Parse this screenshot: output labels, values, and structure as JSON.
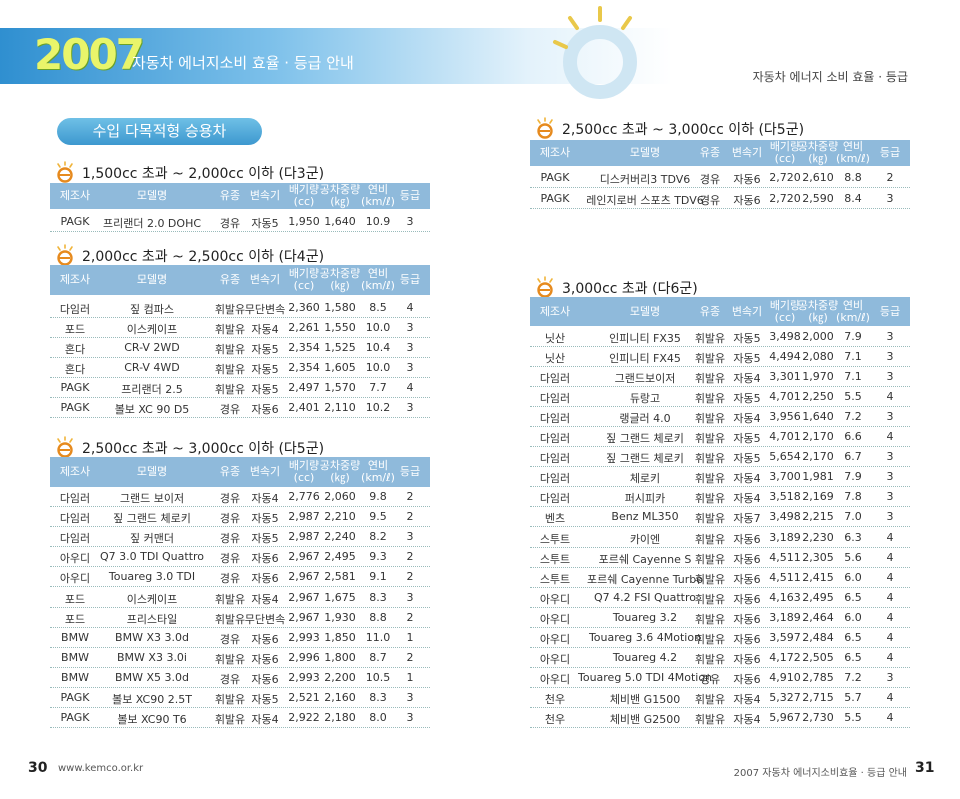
{
  "header": {
    "year": "2007",
    "title": "자동차 에너지소비 효율 · 등급 안내",
    "right": "자동차 에너지 소비 효율 · 등급"
  },
  "banner": "수입 다목적형 승용차",
  "columns": [
    "제조사",
    "모델명",
    "유종",
    "변속기",
    [
      "배기량",
      "(cc)"
    ],
    [
      "공차중량",
      "(㎏)"
    ],
    [
      "연비",
      "(km/ℓ)"
    ],
    "등급"
  ],
  "tables": [
    {
      "heading": "1,500cc 초과 ~ 2,000cc 이하 (다3군)",
      "rows": [
        [
          "PAGK",
          "프리랜더 2.0 DOHC",
          "경유",
          "자동5",
          "1,950",
          "1,640",
          "10.9",
          "3"
        ]
      ]
    },
    {
      "heading": "2,000cc 초과 ~ 2,500cc 이하 (다4군)",
      "rows": [
        [
          "다임러",
          "짚 컴파스",
          "휘발유",
          "무단변속",
          "2,360",
          "1,580",
          "8.5",
          "4"
        ],
        [
          "포드",
          "이스케이프",
          "휘발유",
          "자동4",
          "2,261",
          "1,550",
          "10.0",
          "3"
        ],
        [
          "혼다",
          "CR-V 2WD",
          "휘발유",
          "자동5",
          "2,354",
          "1,525",
          "10.4",
          "3"
        ],
        [
          "혼다",
          "CR-V 4WD",
          "휘발유",
          "자동5",
          "2,354",
          "1,605",
          "10.0",
          "3"
        ],
        [
          "PAGK",
          "프리랜더 2.5",
          "휘발유",
          "자동5",
          "2,497",
          "1,570",
          "7.7",
          "4"
        ],
        [
          "PAGK",
          "볼보 XC 90 D5",
          "경유",
          "자동6",
          "2,401",
          "2,110",
          "10.2",
          "3"
        ]
      ]
    },
    {
      "heading": "2,500cc 초과 ~ 3,000cc 이하 (다5군)",
      "rows": [
        [
          "다임러",
          "그랜드 보이저",
          "경유",
          "자동4",
          "2,776",
          "2,060",
          "9.8",
          "2"
        ],
        [
          "다임러",
          "짚 그랜드 체로키",
          "경유",
          "자동5",
          "2,987",
          "2,210",
          "9.5",
          "2"
        ],
        [
          "다임러",
          "짚 커맨더",
          "경유",
          "자동5",
          "2,987",
          "2,240",
          "8.2",
          "3"
        ],
        [
          "아우디",
          "Q7 3.0 TDI Quattro",
          "경유",
          "자동6",
          "2,967",
          "2,495",
          "9.3",
          "2"
        ],
        [
          "아우디",
          "Touareg 3.0 TDI",
          "경유",
          "자동6",
          "2,967",
          "2,581",
          "9.1",
          "2"
        ],
        [
          "포드",
          "이스케이프",
          "휘발유",
          "자동4",
          "2,967",
          "1,675",
          "8.3",
          "3"
        ],
        [
          "포드",
          "프리스타일",
          "휘발유",
          "무단변속",
          "2,967",
          "1,930",
          "8.8",
          "2"
        ],
        [
          "BMW",
          "BMW X3 3.0d",
          "경유",
          "자동6",
          "2,993",
          "1,850",
          "11.0",
          "1"
        ],
        [
          "BMW",
          "BMW X3 3.0i",
          "휘발유",
          "자동6",
          "2,996",
          "1,800",
          "8.7",
          "2"
        ],
        [
          "BMW",
          "BMW X5 3.0d",
          "경유",
          "자동6",
          "2,993",
          "2,200",
          "10.5",
          "1"
        ],
        [
          "PAGK",
          "볼보 XC90 2.5T",
          "휘발유",
          "자동5",
          "2,521",
          "2,160",
          "8.3",
          "3"
        ],
        [
          "PAGK",
          "볼보 XC90 T6",
          "휘발유",
          "자동4",
          "2,922",
          "2,180",
          "8.0",
          "3"
        ]
      ]
    },
    {
      "heading": "2,500cc 초과 ~ 3,000cc 이하 (다5군)",
      "rows": [
        [
          "PAGK",
          "디스커버리3 TDV6",
          "경유",
          "자동6",
          "2,720",
          "2,610",
          "8.8",
          "2"
        ],
        [
          "PAGK",
          "레인지로버 스포츠 TDV6",
          "경유",
          "자동6",
          "2,720",
          "2,590",
          "8.4",
          "3"
        ]
      ]
    },
    {
      "heading": "3,000cc 초과 (다6군)",
      "rows": [
        [
          "닛산",
          "인피니티 FX35",
          "휘발유",
          "자동5",
          "3,498",
          "2,000",
          "7.9",
          "3"
        ],
        [
          "닛산",
          "인피니티 FX45",
          "휘발유",
          "자동5",
          "4,494",
          "2,080",
          "7.1",
          "3"
        ],
        [
          "다임러",
          "그랜드보이저",
          "휘발유",
          "자동4",
          "3,301",
          "1,970",
          "7.1",
          "3"
        ],
        [
          "다임러",
          "듀랑고",
          "휘발유",
          "자동5",
          "4,701",
          "2,250",
          "5.5",
          "4"
        ],
        [
          "다임러",
          "랭글러 4.0",
          "휘발유",
          "자동4",
          "3,956",
          "1,640",
          "7.2",
          "3"
        ],
        [
          "다임러",
          "짚 그랜드 체로키",
          "휘발유",
          "자동5",
          "4,701",
          "2,170",
          "6.6",
          "4"
        ],
        [
          "다임러",
          "짚 그랜드 체로키",
          "휘발유",
          "자동5",
          "5,654",
          "2,170",
          "6.7",
          "3"
        ],
        [
          "다임러",
          "체로키",
          "휘발유",
          "자동4",
          "3,700",
          "1,981",
          "7.9",
          "3"
        ],
        [
          "다임러",
          "퍼시피카",
          "휘발유",
          "자동4",
          "3,518",
          "2,169",
          "7.8",
          "3"
        ],
        [
          "벤츠",
          "Benz ML350",
          "휘발유",
          "자동7",
          "3,498",
          "2,215",
          "7.0",
          "3"
        ],
        [
          "스투트",
          "카이엔",
          "휘발유",
          "자동6",
          "3,189",
          "2,230",
          "6.3",
          "4"
        ],
        [
          "스투트",
          "포르쉐 Cayenne S",
          "휘발유",
          "자동6",
          "4,511",
          "2,305",
          "5.6",
          "4"
        ],
        [
          "스투트",
          "포르쉐 Cayenne Turbo",
          "휘발유",
          "자동6",
          "4,511",
          "2,415",
          "6.0",
          "4"
        ],
        [
          "아우디",
          "Q7 4.2 FSI Quattro",
          "휘발유",
          "자동6",
          "4,163",
          "2,495",
          "6.5",
          "4"
        ],
        [
          "아우디",
          "Touareg 3.2",
          "휘발유",
          "자동6",
          "3,189",
          "2,464",
          "6.0",
          "4"
        ],
        [
          "아우디",
          "Touareg 3.6 4Motion",
          "휘발유",
          "자동6",
          "3,597",
          "2,484",
          "6.5",
          "4"
        ],
        [
          "아우디",
          "Touareg 4.2",
          "휘발유",
          "자동6",
          "4,172",
          "2,505",
          "6.5",
          "4"
        ],
        [
          "아우디",
          "Touareg 5.0 TDI 4Motion",
          "경유",
          "자동6",
          "4,910",
          "2,785",
          "7.2",
          "3"
        ],
        [
          "천우",
          "체비밴 G1500",
          "휘발유",
          "자동4",
          "5,327",
          "2,715",
          "5.7",
          "4"
        ],
        [
          "천우",
          "체비밴 G2500",
          "휘발유",
          "자동4",
          "5,967",
          "2,730",
          "5.5",
          "4"
        ]
      ]
    }
  ],
  "footer": {
    "left_page": "30",
    "url": "www.kemco.or.kr",
    "right_text": "2007 자동차 에너지소비효율 · 등급 안내",
    "right_page": "31"
  }
}
